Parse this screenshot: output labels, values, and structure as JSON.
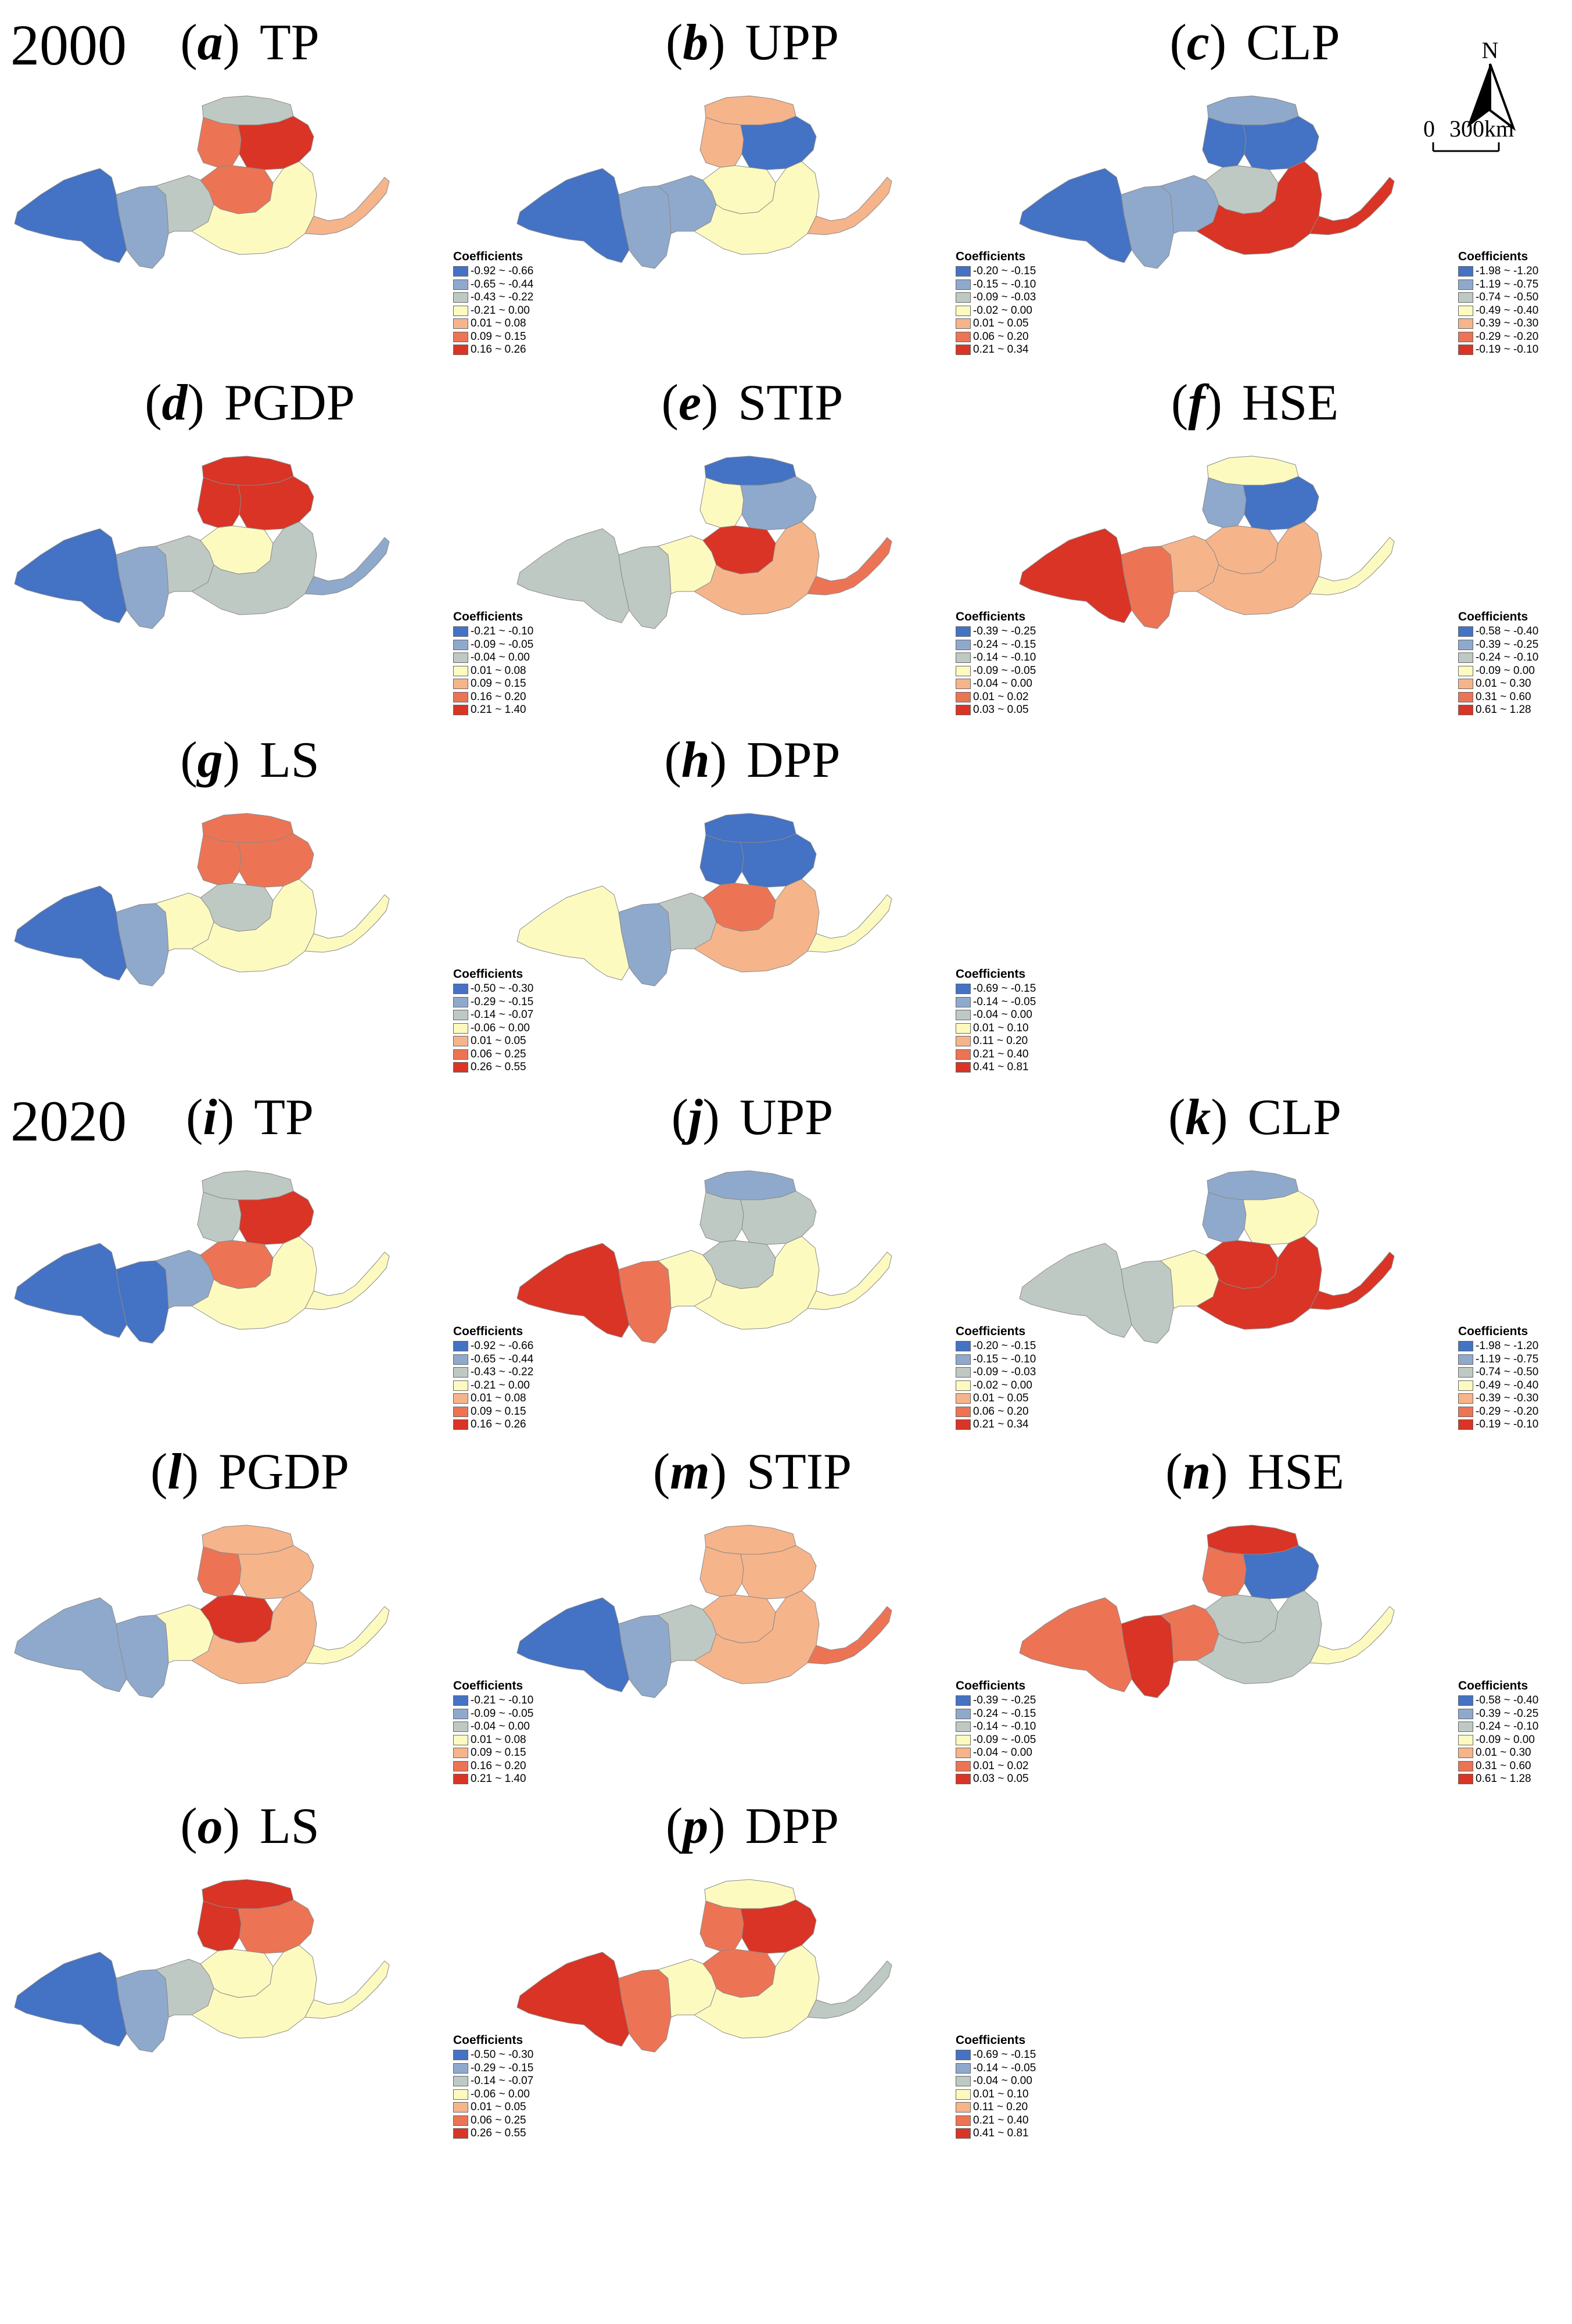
{
  "years": {
    "y2000": "2000",
    "y2020": "2020"
  },
  "colors": [
    "#4472c4",
    "#8fa9cc",
    "#bfc9c4",
    "#fdfac0",
    "#f6b48b",
    "#ec7454",
    "#d93425"
  ],
  "legend_title": "Coefficients",
  "north_label": "N",
  "scale": {
    "zero": "0",
    "distance": "300km"
  },
  "legends": {
    "TP": [
      "-0.92 ~ -0.66",
      "-0.65 ~ -0.44",
      "-0.43 ~ -0.22",
      "-0.21 ~ 0.00",
      "0.01 ~ 0.08",
      "0.09 ~ 0.15",
      "0.16 ~ 0.26"
    ],
    "UPP": [
      "-0.20 ~ -0.15",
      "-0.15 ~ -0.10",
      "-0.09 ~ -0.03",
      "-0.02 ~ 0.00",
      "0.01 ~ 0.05",
      "0.06 ~ 0.20",
      "0.21 ~ 0.34"
    ],
    "CLP": [
      "-1.98 ~ -1.20",
      "-1.19 ~ -0.75",
      "-0.74 ~ -0.50",
      "-0.49 ~ -0.40",
      "-0.39 ~ -0.30",
      "-0.29 ~ -0.20",
      "-0.19 ~ -0.10"
    ],
    "PGDP": [
      "-0.21 ~ -0.10",
      "-0.09 ~ -0.05",
      "-0.04 ~ 0.00",
      "0.01 ~ 0.08",
      "0.09 ~ 0.15",
      "0.16 ~ 0.20",
      "0.21 ~ 1.40"
    ],
    "STIP": [
      "-0.39 ~ -0.25",
      "-0.24 ~ -0.15",
      "-0.14 ~ -0.10",
      "-0.09 ~ -0.05",
      "-0.04 ~ 0.00",
      "0.01 ~ 0.02",
      "0.03 ~ 0.05"
    ],
    "HSE": [
      "-0.58 ~ -0.40",
      "-0.39 ~ -0.25",
      "-0.24 ~ -0.10",
      "-0.09 ~ 0.00",
      "0.01 ~ 0.30",
      "0.31 ~ 0.60",
      "0.61 ~ 1.28"
    ],
    "LS": [
      "-0.50 ~ -0.30",
      "-0.29 ~ -0.15",
      "-0.14 ~ -0.07",
      "-0.06 ~ 0.00",
      "0.01 ~ 0.05",
      "0.06 ~ 0.25",
      "0.26 ~ 0.55"
    ],
    "DPP": [
      "-0.69 ~ -0.15",
      "-0.14 ~ -0.05",
      "-0.04 ~ 0.00",
      "0.01 ~ 0.10",
      "0.11 ~ 0.20",
      "0.21 ~ 0.40",
      "0.41 ~ 0.81"
    ]
  },
  "panels": [
    {
      "letter": "a",
      "var": "TP",
      "year": "2000"
    },
    {
      "letter": "b",
      "var": "UPP",
      "year": "2000"
    },
    {
      "letter": "c",
      "var": "CLP",
      "year": "2000"
    },
    {
      "letter": "d",
      "var": "PGDP",
      "year": "2000"
    },
    {
      "letter": "e",
      "var": "STIP",
      "year": "2000"
    },
    {
      "letter": "f",
      "var": "HSE",
      "year": "2000"
    },
    {
      "letter": "g",
      "var": "LS",
      "year": "2000"
    },
    {
      "letter": "h",
      "var": "DPP",
      "year": "2000"
    },
    {
      "letter": "i",
      "var": "TP",
      "year": "2020"
    },
    {
      "letter": "j",
      "var": "UPP",
      "year": "2020"
    },
    {
      "letter": "k",
      "var": "CLP",
      "year": "2020"
    },
    {
      "letter": "l",
      "var": "PGDP",
      "year": "2020"
    },
    {
      "letter": "m",
      "var": "STIP",
      "year": "2020"
    },
    {
      "letter": "n",
      "var": "HSE",
      "year": "2020"
    },
    {
      "letter": "o",
      "var": "LS",
      "year": "2020"
    },
    {
      "letter": "p",
      "var": "DPP",
      "year": "2020"
    }
  ]
}
